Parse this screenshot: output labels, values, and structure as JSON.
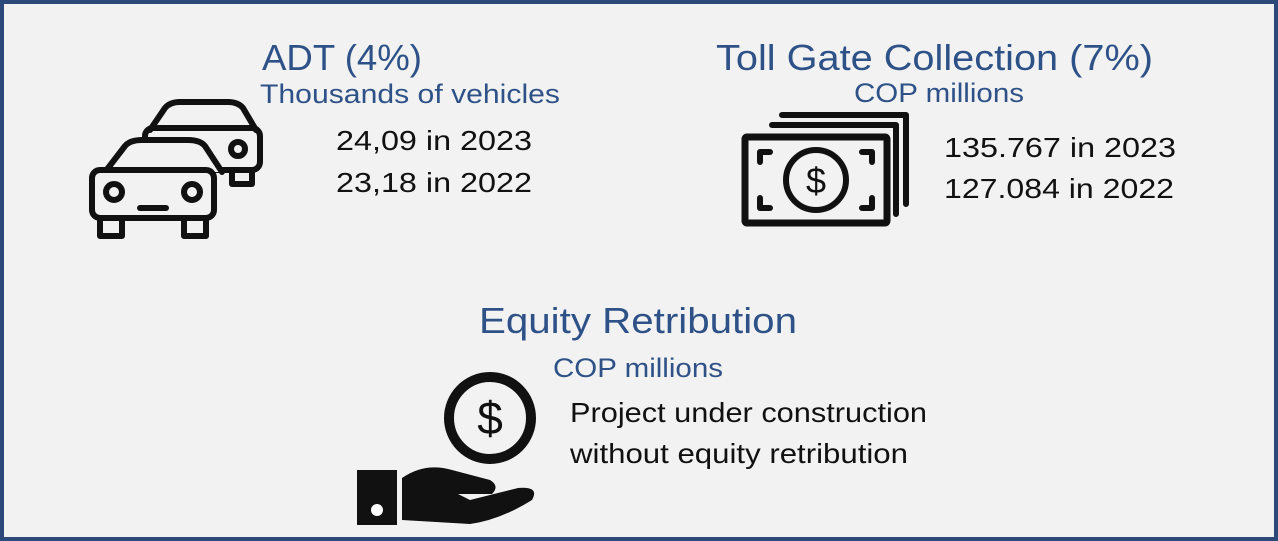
{
  "adt": {
    "title": "ADT (4%)",
    "subtitle": "Thousands of vehicles",
    "lines": [
      "24,09 in 2023",
      "23,18 in 2022"
    ]
  },
  "toll": {
    "title": "Toll Gate Collection (7%)",
    "subtitle": "COP millions",
    "lines": [
      "135.767 in 2023",
      "127.084 in 2022"
    ]
  },
  "equity": {
    "title": "Equity Retribution",
    "subtitle": "COP millions",
    "lines": [
      "Project under construction",
      "without equity retribution"
    ]
  }
}
